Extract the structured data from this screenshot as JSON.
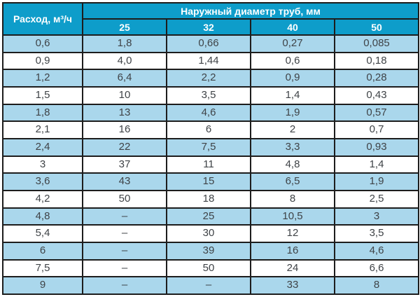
{
  "colors": {
    "header_background": "#0e9dca",
    "header_text": "#ffffff",
    "alt_row_background": "#aad7ec",
    "row_background": "#ffffff",
    "border": "#1d1d1d",
    "cell_text": "#3f4347"
  },
  "chart_data": {
    "type": "table",
    "corner_label": "Расход, м³/ч",
    "group_label": "Наружный диаметр труб, мм",
    "columns": [
      "25",
      "32",
      "40",
      "50"
    ],
    "rows": [
      [
        "0,6",
        "1,8",
        "0,66",
        "0,27",
        "0,085"
      ],
      [
        "0,9",
        "4,0",
        "1,44",
        "0,6",
        "0,18"
      ],
      [
        "1,2",
        "6,4",
        "2,2",
        "0,9",
        "0,28"
      ],
      [
        "1,5",
        "10",
        "3,5",
        "1,4",
        "0,43"
      ],
      [
        "1,8",
        "13",
        "4,6",
        "1,9",
        "0,57"
      ],
      [
        "2,1",
        "16",
        "6",
        "2",
        "0,7"
      ],
      [
        "2,4",
        "22",
        "7,5",
        "3,3",
        "0,93"
      ],
      [
        "3",
        "37",
        "11",
        "4,8",
        "1,4"
      ],
      [
        "3,6",
        "43",
        "15",
        "6,5",
        "1,9"
      ],
      [
        "4,2",
        "50",
        "18",
        "8",
        "2,5"
      ],
      [
        "4,8",
        "–",
        "25",
        "10,5",
        "3"
      ],
      [
        "5,4",
        "–",
        "30",
        "12",
        "3,5"
      ],
      [
        "6",
        "–",
        "39",
        "16",
        "4,6"
      ],
      [
        "7,5",
        "–",
        "50",
        "24",
        "6,6"
      ],
      [
        "9",
        "–",
        "–",
        "33",
        "8"
      ]
    ]
  }
}
